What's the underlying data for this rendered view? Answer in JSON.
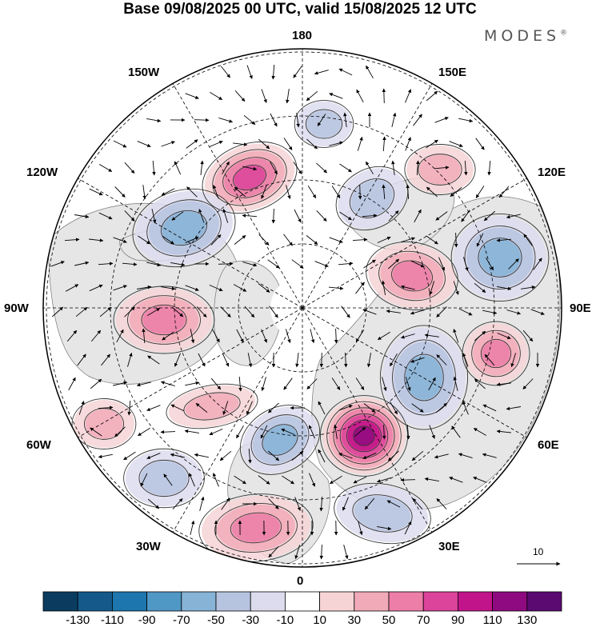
{
  "title": "Base 09/08/2025 00 UTC, valid 15/08/2025 12 UTC",
  "brand": {
    "name": "MODES",
    "mark": "®"
  },
  "longitude_labels": {
    "top": "180",
    "bottom": "0",
    "left": "90W",
    "right": "90E",
    "upper_left_1": "150W",
    "upper_left_2": "120W",
    "lower_left_1": "60W",
    "lower_left_2": "30W",
    "upper_right_1": "150E",
    "upper_right_2": "120E",
    "lower_right_1": "60E",
    "lower_right_2": "30E"
  },
  "vector_reference": {
    "value": "10"
  },
  "colorbar": {
    "ticks": [
      "-130",
      "-110",
      "-90",
      "-70",
      "-50",
      "-30",
      "-10",
      "10",
      "30",
      "50",
      "70",
      "90",
      "110",
      "130"
    ],
    "colors": [
      "#0b3c60",
      "#14598a",
      "#1d76ad",
      "#4f97c5",
      "#86b3d6",
      "#b6c4df",
      "#dcdcee",
      "#ffffff",
      "#f6d4d5",
      "#f1aab8",
      "#ec7ea8",
      "#db449a",
      "#c2148a",
      "#8f0a80",
      "#5a0a70"
    ]
  },
  "anomaly_centres": [
    {
      "name": "north-pacific-high",
      "value": 70,
      "sign": "positive"
    },
    {
      "name": "alaska-low",
      "value": -50,
      "sign": "negative"
    },
    {
      "name": "east-siberia-low",
      "value": -30,
      "sign": "negative"
    },
    {
      "name": "kara-high",
      "value": 50,
      "sign": "positive"
    },
    {
      "name": "central-siberia-low",
      "value": -50,
      "sign": "negative"
    },
    {
      "name": "west-siberia-low",
      "value": -50,
      "sign": "negative"
    },
    {
      "name": "ural-high",
      "value": 110,
      "sign": "positive"
    },
    {
      "name": "barents-high",
      "value": 50,
      "sign": "positive"
    },
    {
      "name": "scandinavia-low",
      "value": -30,
      "sign": "negative"
    },
    {
      "name": "greenland-low",
      "value": -50,
      "sign": "negative"
    },
    {
      "name": "canada-high",
      "value": 50,
      "sign": "positive"
    },
    {
      "name": "atlantic-low",
      "value": -30,
      "sign": "negative"
    },
    {
      "name": "north-atlantic-high",
      "value": 50,
      "sign": "positive"
    },
    {
      "name": "baffin-high",
      "value": 30,
      "sign": "positive"
    },
    {
      "name": "bering-low",
      "value": -30,
      "sign": "negative"
    },
    {
      "name": "pacific-east-high",
      "value": 30,
      "sign": "positive"
    },
    {
      "name": "europe-high",
      "value": 30,
      "sign": "positive"
    }
  ]
}
